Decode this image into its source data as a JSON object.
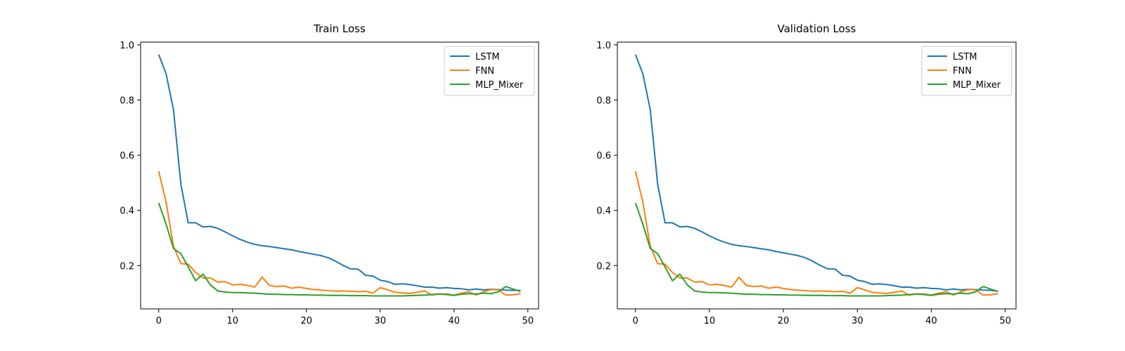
{
  "chart_data": [
    {
      "type": "line",
      "title": "Train Loss",
      "xlabel": "",
      "ylabel": "",
      "xlim": [
        -2.45,
        51.45
      ],
      "ylim": [
        0.043,
        1.01
      ],
      "xticks": [
        0,
        10,
        20,
        30,
        40,
        50
      ],
      "yticks": [
        0.2,
        0.4,
        0.6,
        0.8,
        1.0
      ],
      "xtick_labels": [
        "0",
        "10",
        "20",
        "30",
        "40",
        "50"
      ],
      "ytick_labels": [
        "0.2",
        "0.4",
        "0.6",
        "0.8",
        "1.0"
      ],
      "grid": false,
      "legend": "upper right",
      "x": [
        0,
        1,
        2,
        3,
        4,
        5,
        6,
        7,
        8,
        9,
        10,
        11,
        12,
        13,
        14,
        15,
        16,
        17,
        18,
        19,
        20,
        21,
        22,
        23,
        24,
        25,
        26,
        27,
        28,
        29,
        30,
        31,
        32,
        33,
        34,
        35,
        36,
        37,
        38,
        39,
        40,
        41,
        42,
        43,
        44,
        45,
        46,
        47,
        48,
        49
      ],
      "series": [
        {
          "name": "LSTM",
          "color": "#1f77b4",
          "values": [
            0.965,
            0.895,
            0.765,
            0.495,
            0.355,
            0.355,
            0.34,
            0.342,
            0.335,
            0.322,
            0.308,
            0.295,
            0.285,
            0.277,
            0.272,
            0.269,
            0.265,
            0.261,
            0.257,
            0.251,
            0.246,
            0.241,
            0.236,
            0.228,
            0.215,
            0.2,
            0.188,
            0.187,
            0.165,
            0.162,
            0.147,
            0.142,
            0.132,
            0.134,
            0.131,
            0.127,
            0.122,
            0.122,
            0.118,
            0.12,
            0.117,
            0.116,
            0.112,
            0.115,
            0.112,
            0.114,
            0.113,
            0.111,
            0.11,
            0.11
          ]
        },
        {
          "name": "FNN",
          "color": "#ff7f0e",
          "values": [
            0.542,
            0.43,
            0.27,
            0.207,
            0.205,
            0.175,
            0.155,
            0.155,
            0.14,
            0.142,
            0.13,
            0.132,
            0.128,
            0.122,
            0.158,
            0.128,
            0.124,
            0.126,
            0.118,
            0.122,
            0.117,
            0.113,
            0.111,
            0.109,
            0.107,
            0.108,
            0.107,
            0.105,
            0.107,
            0.1,
            0.12,
            0.112,
            0.103,
            0.101,
            0.099,
            0.103,
            0.108,
            0.093,
            0.097,
            0.097,
            0.093,
            0.1,
            0.105,
            0.093,
            0.105,
            0.113,
            0.112,
            0.093,
            0.094,
            0.098
          ]
        },
        {
          "name": "MLP_Mixer",
          "color": "#2ca02c",
          "values": [
            0.427,
            0.35,
            0.262,
            0.243,
            0.195,
            0.145,
            0.169,
            0.13,
            0.108,
            0.104,
            0.102,
            0.102,
            0.101,
            0.1,
            0.098,
            0.096,
            0.096,
            0.095,
            0.095,
            0.094,
            0.094,
            0.093,
            0.093,
            0.092,
            0.092,
            0.092,
            0.091,
            0.091,
            0.091,
            0.09,
            0.09,
            0.09,
            0.09,
            0.09,
            0.091,
            0.092,
            0.093,
            0.095,
            0.097,
            0.095,
            0.092,
            0.096,
            0.098,
            0.097,
            0.1,
            0.098,
            0.105,
            0.124,
            0.115,
            0.106
          ]
        }
      ]
    },
    {
      "type": "line",
      "title": "Validation Loss",
      "xlabel": "",
      "ylabel": "",
      "xlim": [
        -2.45,
        51.45
      ],
      "ylim": [
        0.043,
        1.01
      ],
      "xticks": [
        0,
        10,
        20,
        30,
        40,
        50
      ],
      "yticks": [
        0.2,
        0.4,
        0.6,
        0.8,
        1.0
      ],
      "xtick_labels": [
        "0",
        "10",
        "20",
        "30",
        "40",
        "50"
      ],
      "ytick_labels": [
        "0.2",
        "0.4",
        "0.6",
        "0.8",
        "1.0"
      ],
      "grid": false,
      "legend": "upper right",
      "x": [
        0,
        1,
        2,
        3,
        4,
        5,
        6,
        7,
        8,
        9,
        10,
        11,
        12,
        13,
        14,
        15,
        16,
        17,
        18,
        19,
        20,
        21,
        22,
        23,
        24,
        25,
        26,
        27,
        28,
        29,
        30,
        31,
        32,
        33,
        34,
        35,
        36,
        37,
        38,
        39,
        40,
        41,
        42,
        43,
        44,
        45,
        46,
        47,
        48,
        49
      ],
      "series": [
        {
          "name": "LSTM",
          "color": "#1f77b4",
          "values": [
            0.965,
            0.895,
            0.765,
            0.495,
            0.355,
            0.355,
            0.34,
            0.342,
            0.335,
            0.322,
            0.308,
            0.295,
            0.285,
            0.277,
            0.272,
            0.269,
            0.265,
            0.261,
            0.257,
            0.251,
            0.246,
            0.241,
            0.236,
            0.228,
            0.215,
            0.2,
            0.188,
            0.187,
            0.165,
            0.162,
            0.147,
            0.142,
            0.132,
            0.134,
            0.131,
            0.127,
            0.122,
            0.122,
            0.118,
            0.12,
            0.117,
            0.116,
            0.112,
            0.115,
            0.112,
            0.114,
            0.113,
            0.111,
            0.11,
            0.108
          ]
        },
        {
          "name": "FNN",
          "color": "#ff7f0e",
          "values": [
            0.542,
            0.43,
            0.27,
            0.207,
            0.205,
            0.175,
            0.155,
            0.155,
            0.14,
            0.142,
            0.13,
            0.132,
            0.128,
            0.122,
            0.158,
            0.128,
            0.124,
            0.126,
            0.118,
            0.122,
            0.117,
            0.113,
            0.111,
            0.109,
            0.107,
            0.108,
            0.107,
            0.105,
            0.107,
            0.1,
            0.12,
            0.112,
            0.103,
            0.101,
            0.099,
            0.103,
            0.108,
            0.093,
            0.097,
            0.097,
            0.093,
            0.1,
            0.105,
            0.093,
            0.105,
            0.113,
            0.112,
            0.093,
            0.094,
            0.098
          ]
        },
        {
          "name": "MLP_Mixer",
          "color": "#2ca02c",
          "values": [
            0.427,
            0.35,
            0.262,
            0.243,
            0.195,
            0.145,
            0.169,
            0.13,
            0.108,
            0.104,
            0.102,
            0.102,
            0.101,
            0.1,
            0.098,
            0.096,
            0.096,
            0.095,
            0.095,
            0.094,
            0.094,
            0.093,
            0.093,
            0.092,
            0.092,
            0.092,
            0.091,
            0.091,
            0.091,
            0.09,
            0.09,
            0.09,
            0.09,
            0.09,
            0.091,
            0.092,
            0.093,
            0.095,
            0.097,
            0.095,
            0.092,
            0.096,
            0.098,
            0.097,
            0.1,
            0.098,
            0.105,
            0.124,
            0.115,
            0.106
          ]
        }
      ]
    }
  ]
}
